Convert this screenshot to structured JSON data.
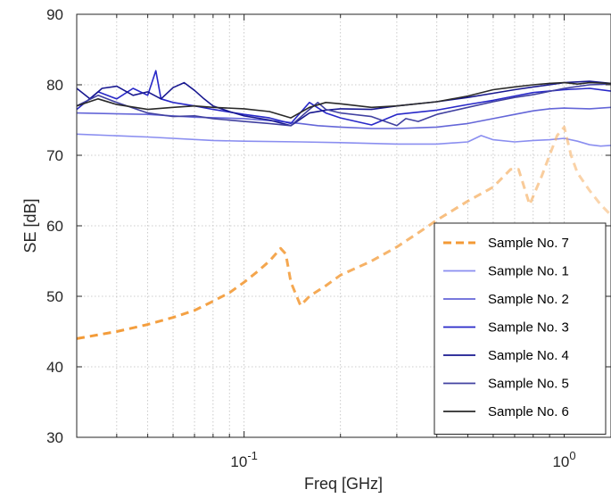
{
  "chart_data": {
    "type": "line",
    "title": "",
    "xlabel": "Freq [GHz]",
    "ylabel": "SE [dB]",
    "xscale": "log",
    "xlim": [
      0.03,
      1.4
    ],
    "ylim": [
      30,
      90
    ],
    "y_ticks": [
      "30",
      "40",
      "50",
      "60",
      "70",
      "80",
      "90"
    ],
    "x_ticks": [
      {
        "value": 0.1,
        "base": "10",
        "exp": "-1"
      },
      {
        "value": 1,
        "base": "10",
        "exp": "0"
      }
    ],
    "grid": "dotted",
    "legend_position": "bottom-right",
    "series": [
      {
        "name": "Sample No. 7",
        "color": "#f39a36",
        "style": "dashed",
        "opacity_gradient": true,
        "x": [
          0.03,
          0.04,
          0.05,
          0.06,
          0.07,
          0.08,
          0.09,
          0.1,
          0.11,
          0.12,
          0.13,
          0.135,
          0.14,
          0.15,
          0.16,
          0.18,
          0.2,
          0.25,
          0.3,
          0.35,
          0.4,
          0.5,
          0.6,
          0.68,
          0.72,
          0.78,
          0.85,
          0.9,
          0.95,
          1.0,
          1.05,
          1.1,
          1.2,
          1.3,
          1.4
        ],
        "y": [
          44,
          45,
          46,
          47,
          48,
          49.3,
          50.5,
          52,
          53.5,
          55,
          56.8,
          56,
          52,
          48.7,
          50,
          51.5,
          53,
          55,
          57,
          59,
          60.8,
          63.5,
          65.5,
          68,
          68,
          63,
          67,
          70,
          72.8,
          74,
          70,
          67.5,
          65,
          63,
          61.5
        ]
      },
      {
        "name": "Sample No. 1",
        "color": "#8a8ef0",
        "style": "solid",
        "x": [
          0.03,
          0.05,
          0.08,
          0.1,
          0.15,
          0.2,
          0.3,
          0.4,
          0.5,
          0.55,
          0.6,
          0.7,
          0.8,
          0.9,
          1.0,
          1.1,
          1.2,
          1.3,
          1.4
        ],
        "y": [
          73,
          72.6,
          72.1,
          72,
          71.9,
          71.8,
          71.6,
          71.6,
          71.9,
          72.8,
          72.2,
          71.9,
          72.1,
          72.2,
          72.4,
          72,
          71.5,
          71.3,
          71.4
        ]
      },
      {
        "name": "Sample No. 2",
        "color": "#6466d8",
        "style": "solid",
        "x": [
          0.03,
          0.05,
          0.07,
          0.1,
          0.13,
          0.15,
          0.17,
          0.2,
          0.25,
          0.3,
          0.35,
          0.4,
          0.5,
          0.6,
          0.7,
          0.8,
          0.9,
          1.0,
          1.2,
          1.4
        ],
        "y": [
          76,
          75.8,
          75.4,
          75.2,
          74.8,
          74.5,
          74.2,
          74,
          73.8,
          73.8,
          73.9,
          74,
          74.5,
          75.2,
          75.8,
          76.3,
          76.6,
          76.7,
          76.6,
          76.8
        ]
      },
      {
        "name": "Sample No. 3",
        "color": "#2828c8",
        "style": "solid",
        "x": [
          0.03,
          0.035,
          0.04,
          0.045,
          0.05,
          0.053,
          0.055,
          0.06,
          0.07,
          0.08,
          0.1,
          0.12,
          0.14,
          0.16,
          0.18,
          0.2,
          0.25,
          0.3,
          0.4,
          0.5,
          0.6,
          0.7,
          0.8,
          1.0,
          1.2,
          1.4
        ],
        "y": [
          76.5,
          79,
          78,
          79.5,
          78.5,
          82,
          78,
          77.5,
          77,
          76.5,
          75.8,
          75.3,
          74.5,
          77.5,
          76,
          75.3,
          74.3,
          75.8,
          76.4,
          77.2,
          77.8,
          78.4,
          78.9,
          79.3,
          79.5,
          79.1
        ]
      },
      {
        "name": "Sample No. 4",
        "color": "#181890",
        "style": "solid",
        "x": [
          0.03,
          0.033,
          0.036,
          0.04,
          0.045,
          0.05,
          0.055,
          0.06,
          0.065,
          0.07,
          0.075,
          0.08,
          0.09,
          0.1,
          0.12,
          0.14,
          0.16,
          0.18,
          0.2,
          0.25,
          0.3,
          0.4,
          0.5,
          0.6,
          0.7,
          0.8,
          0.9,
          1.0,
          1.2,
          1.4
        ],
        "y": [
          79.5,
          78,
          79.5,
          79.8,
          78.5,
          79,
          78,
          79.6,
          80.3,
          79.2,
          78,
          77,
          76.2,
          75.6,
          75,
          74.2,
          76,
          76.4,
          76.6,
          76.5,
          77,
          77.6,
          78.2,
          78.8,
          79.3,
          79.7,
          80,
          80.3,
          80.5,
          80.2
        ]
      },
      {
        "name": "Sample No. 5",
        "color": "#4040a0",
        "style": "solid",
        "x": [
          0.03,
          0.035,
          0.04,
          0.05,
          0.06,
          0.07,
          0.08,
          0.1,
          0.12,
          0.14,
          0.16,
          0.17,
          0.18,
          0.2,
          0.25,
          0.3,
          0.32,
          0.35,
          0.4,
          0.5,
          0.6,
          0.7,
          0.8,
          1.0,
          1.2,
          1.4
        ],
        "y": [
          77,
          78.5,
          77.5,
          76,
          75.5,
          75.6,
          75.2,
          74.8,
          74.5,
          74.2,
          76.5,
          77.5,
          76.5,
          76,
          75.5,
          74.2,
          75.2,
          74.8,
          75.8,
          76.8,
          77.6,
          78.2,
          78.6,
          79.5,
          80,
          80.1
        ]
      },
      {
        "name": "Sample No. 6",
        "color": "#2a2a2a",
        "style": "solid",
        "x": [
          0.03,
          0.035,
          0.04,
          0.05,
          0.06,
          0.07,
          0.08,
          0.1,
          0.12,
          0.14,
          0.16,
          0.18,
          0.2,
          0.25,
          0.3,
          0.4,
          0.5,
          0.6,
          0.7,
          0.8,
          0.9,
          1.0,
          1.1,
          1.2,
          1.4
        ],
        "y": [
          77,
          78,
          77.2,
          76.5,
          76.8,
          77,
          76.8,
          76.6,
          76.2,
          75.3,
          76.8,
          77.5,
          77.3,
          76.8,
          77,
          77.6,
          78.4,
          79.3,
          79.7,
          80,
          80.2,
          80.3,
          80.1,
          80.3,
          80.2
        ]
      }
    ]
  }
}
